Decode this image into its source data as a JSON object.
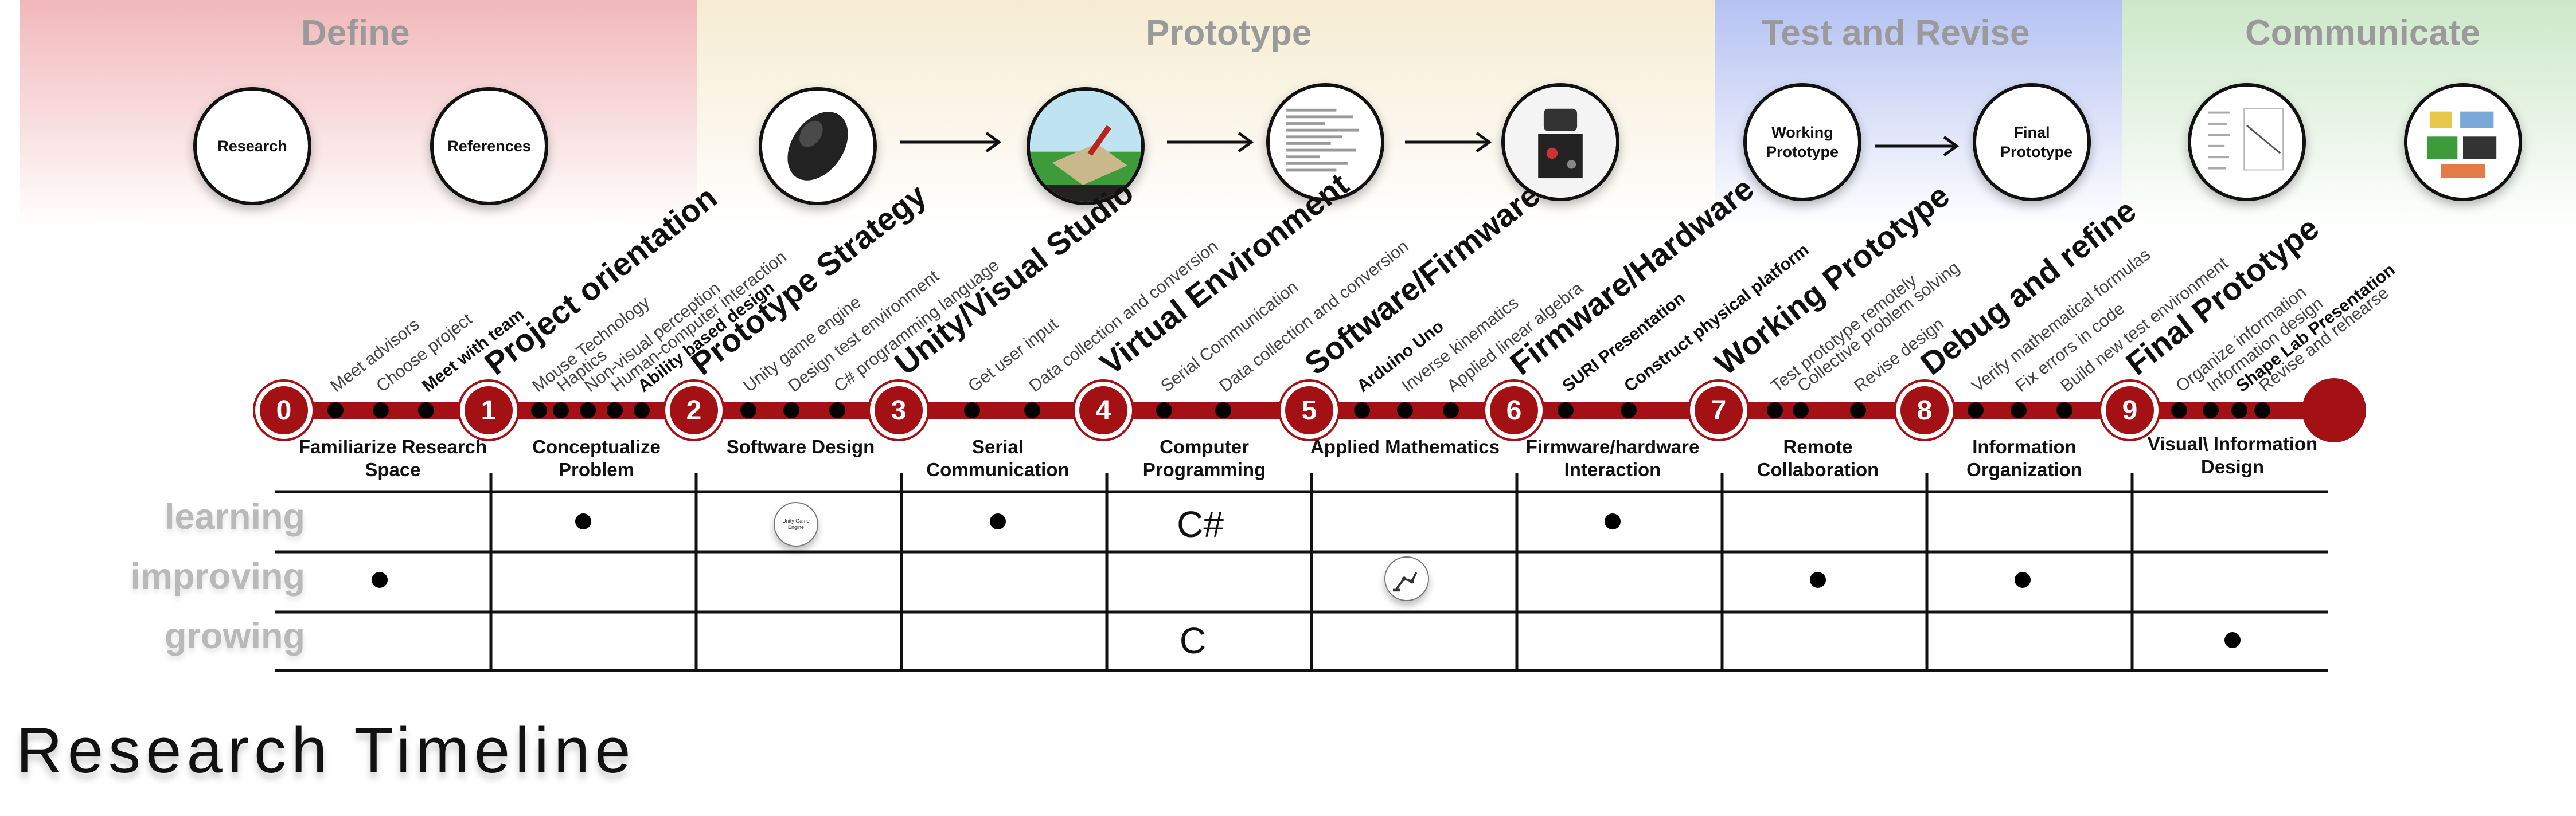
{
  "phases": [
    {
      "title": "Define"
    },
    {
      "title": "Prototype"
    },
    {
      "title": "Test and Revise"
    },
    {
      "title": "Communicate"
    }
  ],
  "phase_circles": {
    "research": "Research",
    "references": "References",
    "working_prototype": "Working Prototype",
    "final_prototype": "Final Prototype"
  },
  "picture_circle_icons": [
    "mouse-image",
    "unity-scene-image",
    "code-listing-image",
    "robot-hardware-image",
    "presentation-page-image",
    "infographic-image"
  ],
  "milestones": [
    "0",
    "1",
    "2",
    "3",
    "4",
    "5",
    "6",
    "7",
    "8",
    "9"
  ],
  "milestone_titles": [
    "Project orientation",
    "Prototype Strategy",
    "Unity/Visual Studio",
    "Virtual Environment",
    "Software/Firmware",
    "Firmware/Hardware",
    "Working Prototype",
    "Debug and refine",
    "Final Prototype"
  ],
  "tasks": [
    "Meet advisors",
    "Choose project",
    "Meet with team",
    "Mouse Technology",
    "Haptics",
    "Non-visual perception",
    "Human-computer interaction",
    "Ability based design",
    "Unity game engine",
    "Design test environment",
    "C# programming language",
    "Get user input",
    "Data collection and conversion",
    "Serial Communication",
    "Data collection and conversion",
    "Arduino Uno",
    "Inverse kinematics",
    "Applied linear algebra",
    "SURI Presentation",
    "Construct physical platform",
    "Test prototype remotely",
    "Collective problem solving",
    "Revise design",
    "Verify mathematical formulas",
    "Fix errors in code",
    "Build new test environment",
    "Organize information",
    "Information design",
    "Shape Lab Presentation",
    "Revise and rehearse"
  ],
  "segments": [
    "Familiarize Research Space",
    "Conceptualize Problem",
    "Software Design",
    "Serial Communication",
    "Computer Programming",
    "Applied Mathematics",
    "Firmware/hardware Interaction",
    "Remote Collaboration",
    "Information Organization",
    "Visual\\ Information Design"
  ],
  "rows": [
    "learning",
    "improving",
    "growing"
  ],
  "matrix": {
    "learning_software_design_badge": "Unity Game Engine",
    "learning_computer_programming_text": "C#",
    "growing_computer_programming_text": "C",
    "improving_applied_mathematics_icon": "robot-arm-image"
  },
  "title": "Research Timeline",
  "colors": {
    "timeline": "#a31114",
    "define": "#f1b8ba",
    "prototype": "#f6ecd2",
    "test": "#b5c2f2",
    "communicate": "#cde8c9"
  }
}
